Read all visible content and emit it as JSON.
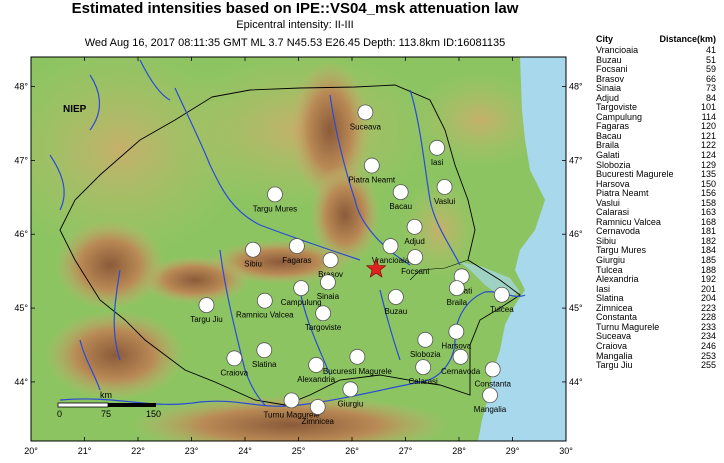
{
  "header": {
    "title": "Estimated intensities based on IPE::VS04_msk attenuation law",
    "epicentral": "Epicentral intensity: II-III",
    "event": "Wed Aug 16, 2017 08:11:35 GMT ML 3.7 N45.53 E26.45 Depth: 113.8km ID:16081135"
  },
  "map": {
    "corner_label": "NIEP",
    "lon_range": [
      20,
      30
    ],
    "lat_range": [
      43.2,
      48.4
    ],
    "lon_ticks": [
      "20°",
      "21°",
      "22°",
      "23°",
      "24°",
      "25°",
      "26°",
      "27°",
      "28°",
      "29°",
      "30°"
    ],
    "lat_ticks": [
      "44°",
      "45°",
      "46°",
      "47°",
      "48°"
    ],
    "epicenter": {
      "lon": 26.45,
      "lat": 45.53
    },
    "scale_bar": {
      "unit": "km",
      "labels": [
        "0",
        "75",
        "150"
      ]
    },
    "colors": {
      "sea": "#a8d8ec",
      "lowland": "#7fbf5a",
      "highland": "#c9a36a",
      "mountain": "#8b5a3a",
      "river": "#2a4bd7",
      "star": "#e02020"
    }
  },
  "cities": [
    {
      "name": "Suceava",
      "lon": 26.25,
      "lat": 47.65
    },
    {
      "name": "Iasi",
      "lon": 27.59,
      "lat": 47.17
    },
    {
      "name": "Piatra Neamt",
      "lon": 26.37,
      "lat": 46.93
    },
    {
      "name": "Vaslui",
      "lon": 27.73,
      "lat": 46.64
    },
    {
      "name": "Bacau",
      "lon": 26.91,
      "lat": 46.57
    },
    {
      "name": "Targu Mures",
      "lon": 24.56,
      "lat": 46.54
    },
    {
      "name": "Adjud",
      "lon": 27.17,
      "lat": 46.1
    },
    {
      "name": "Fagaras",
      "lon": 24.97,
      "lat": 45.84
    },
    {
      "name": "Vrancioaia",
      "lon": 26.72,
      "lat": 45.84
    },
    {
      "name": "Sibiu",
      "lon": 24.15,
      "lat": 45.79
    },
    {
      "name": "Focsani",
      "lon": 27.18,
      "lat": 45.69
    },
    {
      "name": "Brasov",
      "lon": 25.6,
      "lat": 45.65
    },
    {
      "name": "Galati",
      "lon": 28.05,
      "lat": 45.43
    },
    {
      "name": "Campulung",
      "lon": 25.05,
      "lat": 45.27
    },
    {
      "name": "Sinaia",
      "lon": 25.55,
      "lat": 45.35
    },
    {
      "name": "Braila",
      "lon": 27.96,
      "lat": 45.27
    },
    {
      "name": "Tulcea",
      "lon": 28.8,
      "lat": 45.18
    },
    {
      "name": "Ramnicu Valcea",
      "lon": 24.37,
      "lat": 45.1
    },
    {
      "name": "Buzau",
      "lon": 26.82,
      "lat": 45.15
    },
    {
      "name": "Targu Jiu",
      "lon": 23.28,
      "lat": 45.04
    },
    {
      "name": "Targoviste",
      "lon": 25.46,
      "lat": 44.93
    },
    {
      "name": "Harsova",
      "lon": 27.95,
      "lat": 44.68
    },
    {
      "name": "Slobozia",
      "lon": 27.37,
      "lat": 44.57
    },
    {
      "name": "Slatina",
      "lon": 24.36,
      "lat": 44.43
    },
    {
      "name": "Craiova",
      "lon": 23.8,
      "lat": 44.32
    },
    {
      "name": "Bucuresti Magurele",
      "lon": 26.1,
      "lat": 44.34
    },
    {
      "name": "Cernavoda",
      "lon": 28.03,
      "lat": 44.34
    },
    {
      "name": "Alexandria",
      "lon": 25.33,
      "lat": 44.23
    },
    {
      "name": "Calarasi",
      "lon": 27.33,
      "lat": 44.2
    },
    {
      "name": "Constanta",
      "lon": 28.63,
      "lat": 44.17
    },
    {
      "name": "Giurgiu",
      "lon": 25.97,
      "lat": 43.9
    },
    {
      "name": "Mangalia",
      "lon": 28.58,
      "lat": 43.82
    },
    {
      "name": "Turnu Magurele",
      "lon": 24.87,
      "lat": 43.75
    },
    {
      "name": "Zimnicea",
      "lon": 25.36,
      "lat": 43.66
    }
  ],
  "distance_table": {
    "col_city": "City",
    "col_distance": "Distance(km)",
    "rows": [
      {
        "city": "Vrancioaia",
        "distance": "41"
      },
      {
        "city": "Buzau",
        "distance": "51"
      },
      {
        "city": "Focsani",
        "distance": "59"
      },
      {
        "city": "Brasov",
        "distance": "66"
      },
      {
        "city": "Sinaia",
        "distance": "73"
      },
      {
        "city": "Adjud",
        "distance": "84"
      },
      {
        "city": "Targoviste",
        "distance": "101"
      },
      {
        "city": "Campulung",
        "distance": "114"
      },
      {
        "city": "Fagaras",
        "distance": "120"
      },
      {
        "city": "Bacau",
        "distance": "121"
      },
      {
        "city": "Braila",
        "distance": "122"
      },
      {
        "city": "Galati",
        "distance": "124"
      },
      {
        "city": "Slobozia",
        "distance": "129"
      },
      {
        "city": "Bucuresti Magurele",
        "distance": "135"
      },
      {
        "city": "Harsova",
        "distance": "150"
      },
      {
        "city": "Piatra Neamt",
        "distance": "156"
      },
      {
        "city": "Vaslui",
        "distance": "158"
      },
      {
        "city": "Calarasi",
        "distance": "163"
      },
      {
        "city": "Ramnicu Valcea",
        "distance": "168"
      },
      {
        "city": "Cernavoda",
        "distance": "181"
      },
      {
        "city": "Sibiu",
        "distance": "182"
      },
      {
        "city": "Targu Mures",
        "distance": "184"
      },
      {
        "city": "Giurgiu",
        "distance": "185"
      },
      {
        "city": "Tulcea",
        "distance": "188"
      },
      {
        "city": "Alexandria",
        "distance": "192"
      },
      {
        "city": "Iasi",
        "distance": "201"
      },
      {
        "city": "Slatina",
        "distance": "204"
      },
      {
        "city": "Zimnicea",
        "distance": "223"
      },
      {
        "city": "Constanta",
        "distance": "228"
      },
      {
        "city": "Turnu Magurele",
        "distance": "233"
      },
      {
        "city": "Suceava",
        "distance": "234"
      },
      {
        "city": "Craiova",
        "distance": "246"
      },
      {
        "city": "Mangalia",
        "distance": "253"
      },
      {
        "city": "Targu Jiu",
        "distance": "255"
      }
    ]
  }
}
